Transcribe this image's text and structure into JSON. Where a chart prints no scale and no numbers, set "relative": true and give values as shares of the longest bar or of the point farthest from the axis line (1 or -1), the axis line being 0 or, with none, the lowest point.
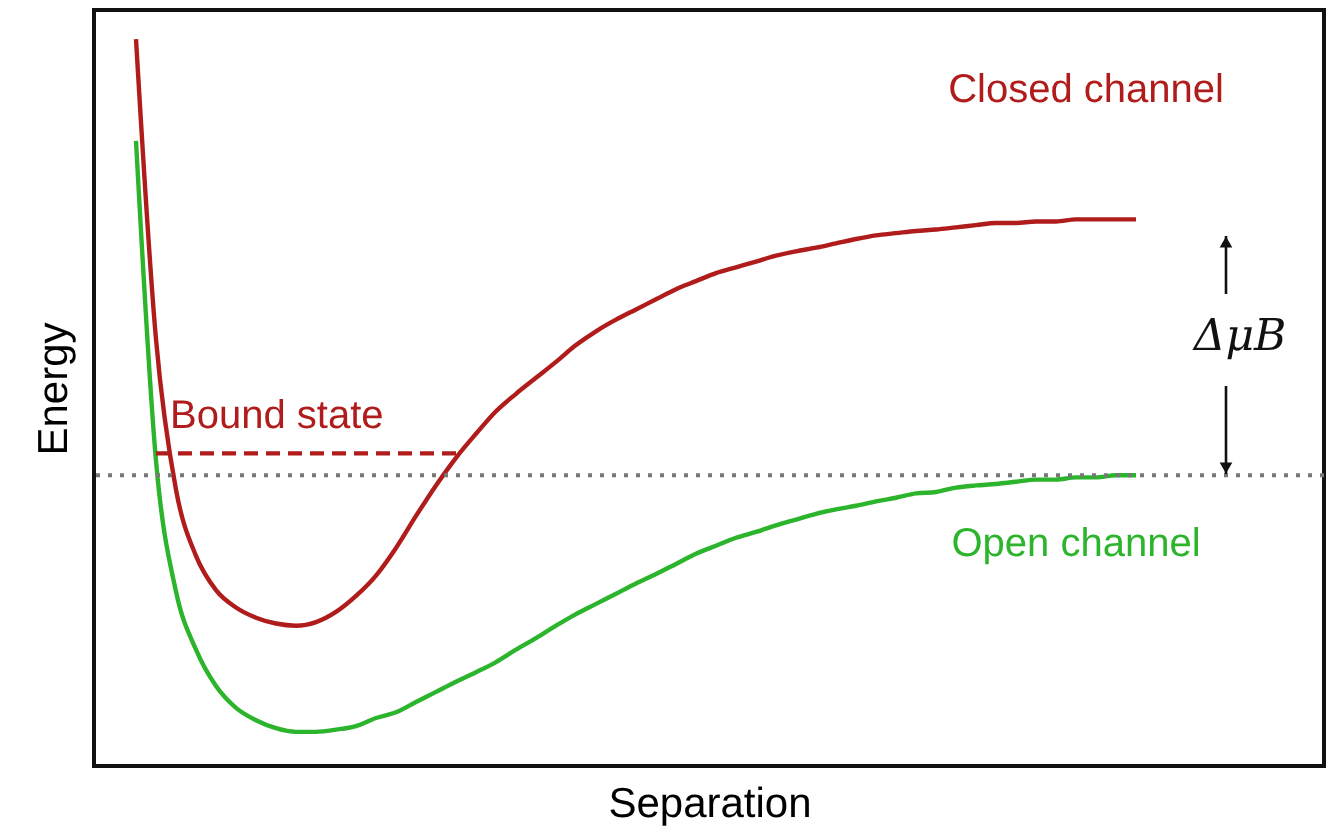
{
  "chart_data": {
    "type": "line",
    "relative": true,
    "xlabel": "Separation",
    "ylabel": "Energy",
    "categories": [
      null,
      null,
      null,
      null,
      null,
      null,
      null,
      null,
      null,
      null,
      null,
      null,
      null,
      null,
      null,
      null,
      null,
      null,
      null,
      null,
      null,
      null,
      null,
      null,
      null,
      null,
      null,
      null,
      null,
      null,
      null,
      null,
      null,
      null,
      null,
      null,
      null,
      null,
      null,
      null,
      null,
      null,
      null,
      null,
      null,
      null,
      null,
      null,
      null,
      null,
      null
    ],
    "series": [
      {
        "name": "Closed channel",
        "color": "#b01c1c",
        "values": [
          1.0,
          0.587,
          0.38,
          0.289,
          0.242,
          0.218,
          0.204,
          0.196,
          0.193,
          0.198,
          0.212,
          0.234,
          0.262,
          0.3,
          0.344,
          0.386,
          0.424,
          0.457,
          0.488,
          0.512,
          0.534,
          0.556,
          0.579,
          0.598,
          0.614,
          0.628,
          0.642,
          0.656,
          0.667,
          0.678,
          0.686,
          0.694,
          0.702,
          0.708,
          0.713,
          0.719,
          0.725,
          0.73,
          0.733,
          0.736,
          0.738,
          0.741,
          0.744,
          0.747,
          0.747,
          0.749,
          0.749,
          0.752,
          0.752,
          0.752,
          0.752
        ]
      },
      {
        "name": "Open channel",
        "color": "#2cb52c",
        "values": [
          0.86,
          0.42,
          0.24,
          0.16,
          0.11,
          0.08,
          0.063,
          0.052,
          0.047,
          0.047,
          0.05,
          0.055,
          0.066,
          0.074,
          0.088,
          0.102,
          0.116,
          0.129,
          0.143,
          0.16,
          0.176,
          0.193,
          0.209,
          0.223,
          0.237,
          0.251,
          0.264,
          0.278,
          0.292,
          0.303,
          0.314,
          0.322,
          0.331,
          0.339,
          0.347,
          0.353,
          0.358,
          0.364,
          0.369,
          0.375,
          0.377,
          0.383,
          0.386,
          0.388,
          0.391,
          0.394,
          0.394,
          0.397,
          0.397,
          0.4,
          0.4
        ]
      },
      {
        "name": "Bound state",
        "color": "#b01c1c",
        "line_style": "dashed",
        "values": [
          null,
          0.43,
          0.43,
          0.43,
          0.43,
          0.43,
          0.43,
          0.43,
          0.43,
          0.43,
          0.43,
          0.43,
          0.43,
          0.43,
          0.43,
          0.43,
          0.43,
          null,
          null,
          null,
          null,
          null,
          null,
          null,
          null,
          null,
          null,
          null,
          null,
          null,
          null,
          null,
          null,
          null,
          null,
          null,
          null,
          null,
          null,
          null,
          null,
          null,
          null,
          null,
          null,
          null,
          null,
          null,
          null,
          null,
          null
        ]
      }
    ],
    "ref_lines": [
      {
        "axis": "y",
        "value": 0.4,
        "color": "#777777",
        "line_style": "dotted"
      }
    ],
    "annotations": [
      "ΔμB"
    ],
    "grid": false
  }
}
